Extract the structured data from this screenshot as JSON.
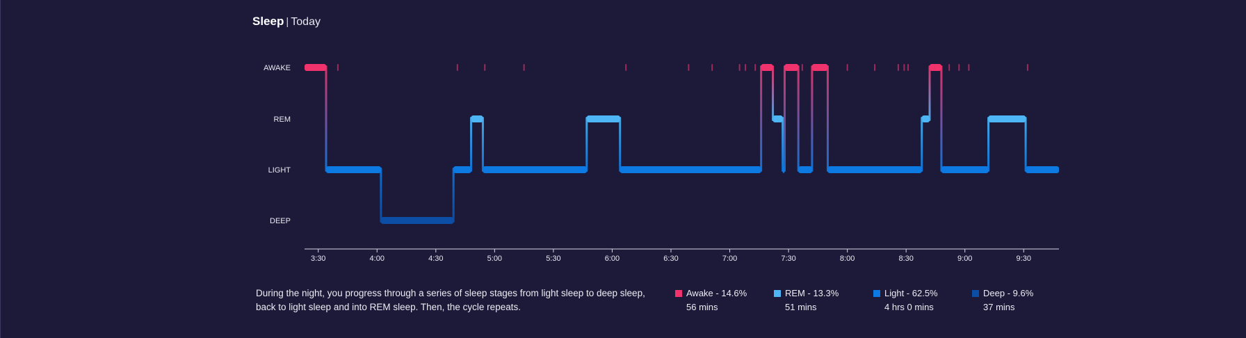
{
  "header": {
    "title": "Sleep",
    "separator": "|",
    "period": "Today"
  },
  "description": "During the night, you progress through a series of sleep stages from light sleep to deep sleep, back to light sleep and into REM sleep. Then, the cycle repeats.",
  "legend": [
    {
      "label": "Awake - 14.6%",
      "duration": "56 mins",
      "color": "#f0336c"
    },
    {
      "label": "REM - 13.3%",
      "duration": "51 mins",
      "color": "#4fb6f5"
    },
    {
      "label": "Light - 62.5%",
      "duration": "4 hrs 0 mins",
      "color": "#0d79e3"
    },
    {
      "label": "Deep - 9.6%",
      "duration": "37 mins",
      "color": "#0c4ea6"
    }
  ],
  "chart_data": {
    "type": "line",
    "step": true,
    "title": "",
    "xlabel": "",
    "ylabel": "",
    "categories": [
      "AWAKE",
      "REM",
      "LIGHT",
      "DEEP"
    ],
    "x_ticks": [
      "3:30",
      "4:00",
      "4:30",
      "5:00",
      "5:30",
      "6:00",
      "6:30",
      "7:00",
      "7:30",
      "8:00",
      "8:30",
      "9:00",
      "9:30"
    ],
    "x_range": [
      "3:23",
      "9:48"
    ],
    "colors": {
      "AWAKE": "#f0336c",
      "REM": "#4fb6f5",
      "LIGHT": "#0d79e3",
      "DEEP": "#0c4ea6"
    },
    "segments": [
      {
        "stage": "AWAKE",
        "start": "3:23",
        "end": "3:34"
      },
      {
        "stage": "LIGHT",
        "start": "3:34",
        "end": "4:02"
      },
      {
        "stage": "DEEP",
        "start": "4:02",
        "end": "4:39"
      },
      {
        "stage": "LIGHT",
        "start": "4:39",
        "end": "4:48"
      },
      {
        "stage": "REM",
        "start": "4:48",
        "end": "4:54"
      },
      {
        "stage": "LIGHT",
        "start": "4:54",
        "end": "5:47"
      },
      {
        "stage": "REM",
        "start": "5:47",
        "end": "6:04"
      },
      {
        "stage": "LIGHT",
        "start": "6:04",
        "end": "7:16"
      },
      {
        "stage": "AWAKE",
        "start": "7:16",
        "end": "7:22"
      },
      {
        "stage": "REM",
        "start": "7:22",
        "end": "7:27"
      },
      {
        "stage": "LIGHT",
        "start": "7:27",
        "end": "7:28"
      },
      {
        "stage": "AWAKE",
        "start": "7:28",
        "end": "7:35"
      },
      {
        "stage": "LIGHT",
        "start": "7:35",
        "end": "7:42"
      },
      {
        "stage": "AWAKE",
        "start": "7:42",
        "end": "7:50"
      },
      {
        "stage": "LIGHT",
        "start": "7:50",
        "end": "8:38"
      },
      {
        "stage": "REM",
        "start": "8:38",
        "end": "8:42"
      },
      {
        "stage": "AWAKE",
        "start": "8:42",
        "end": "8:48"
      },
      {
        "stage": "LIGHT",
        "start": "8:48",
        "end": "9:12"
      },
      {
        "stage": "REM",
        "start": "9:12",
        "end": "9:31"
      },
      {
        "stage": "LIGHT",
        "start": "9:31",
        "end": "9:48"
      }
    ],
    "awake_blips": [
      "3:40",
      "4:41",
      "4:55",
      "5:15",
      "6:07",
      "6:39",
      "6:51",
      "7:05",
      "7:08",
      "7:13",
      "7:37",
      "8:00",
      "8:14",
      "8:26",
      "8:29",
      "8:31",
      "8:52",
      "8:57",
      "9:02",
      "9:32"
    ],
    "legend": {
      "position": "bottom-right"
    },
    "grid": false
  }
}
